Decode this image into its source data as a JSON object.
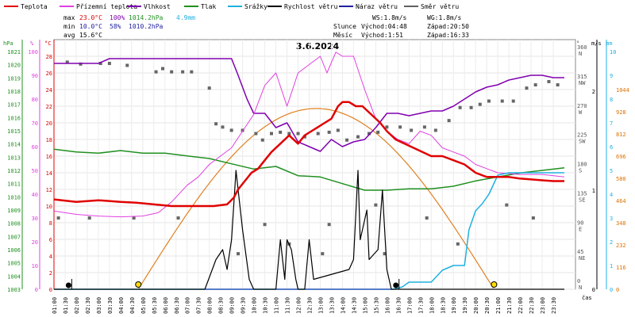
{
  "chart_data": {
    "type": "line",
    "title": "3.6.2024",
    "x_unit_label": "čas",
    "x_ticks": [
      "01:00",
      "01:30",
      "02:00",
      "02:30",
      "03:00",
      "03:30",
      "04:00",
      "04:30",
      "05:00",
      "05:30",
      "06:00",
      "06:30",
      "07:00",
      "07:30",
      "08:00",
      "08:30",
      "09:00",
      "09:30",
      "10:00",
      "10:30",
      "11:00",
      "11:30",
      "12:00",
      "12:30",
      "13:00",
      "13:30",
      "14:00",
      "14:30",
      "15:00",
      "15:30",
      "16:00",
      "16:30",
      "17:00",
      "17:30",
      "18:00",
      "18:30",
      "19:00",
      "19:30",
      "20:00",
      "20:30",
      "21:00",
      "21:30",
      "22:00",
      "22:30",
      "23:00",
      "23:30"
    ],
    "legend": [
      {
        "label": "Teplota",
        "color": "#e00000"
      },
      {
        "label": "Přízemní teplota",
        "color": "#e040e0"
      },
      {
        "label": "Vlhkost",
        "color": "#8000b0"
      },
      {
        "label": "Tlak",
        "color": "#209020"
      },
      {
        "label": "Srážky",
        "color": "#20b0e0"
      },
      {
        "label": "Rychlost větru",
        "color": "#000000"
      },
      {
        "label": "Náraz větru",
        "color": "#2020a0"
      },
      {
        "label": "Směr větru",
        "color": "#606060"
      }
    ],
    "stats": {
      "max_label": "max",
      "max_temp": "23.0°C",
      "max_hum": "100%",
      "max_press": "1014.2hPa",
      "max_rain": "4.9mm",
      "min_label": "min",
      "min_temp": "10.0°C",
      "min_hum": "58%",
      "min_press": "1010.2hPa",
      "avg_label": "avg",
      "avg_temp": "15.6°C"
    },
    "info": {
      "ws": "WS:1.8m/s",
      "wg": "WG:1.8m/s",
      "sun_label": "Slunce",
      "sunrise": "Východ:04:48",
      "sunset": "Západ:20:50",
      "moon_label": "Měsíc",
      "moonrise": "Východ:1:51",
      "moonset": "Západ:16:33"
    },
    "axes": {
      "pressure": {
        "unit": "hPa",
        "ticks": [
          "1003",
          "1004",
          "1005",
          "1006",
          "1007",
          "1008",
          "1009",
          "1010",
          "1011",
          "1012",
          "1013",
          "1014",
          "1015",
          "1016",
          "1017",
          "1018",
          "1019",
          "1020",
          "1021"
        ]
      },
      "humidity": {
        "unit": "%",
        "ticks": [
          "0",
          "10",
          "20",
          "30",
          "40",
          "50",
          "60",
          "70",
          "80",
          "90",
          "100"
        ]
      },
      "temperature": {
        "unit": "°C",
        "ticks": [
          "0",
          "2",
          "4",
          "6",
          "8",
          "10",
          "12",
          "14",
          "16",
          "18",
          "20",
          "22",
          "24",
          "26",
          "28"
        ]
      },
      "direction": {
        "unit": "°",
        "ticks": [
          {
            "deg": "0",
            "dir": "N"
          },
          {
            "deg": "45",
            "dir": "NE"
          },
          {
            "deg": "90",
            "dir": "E"
          },
          {
            "deg": "135",
            "dir": "SE"
          },
          {
            "deg": "180",
            "dir": "S"
          },
          {
            "deg": "225",
            "dir": "SW"
          },
          {
            "deg": "270",
            "dir": "W"
          },
          {
            "deg": "315",
            "dir": "NW"
          },
          {
            "deg": "360",
            "dir": "N"
          }
        ]
      },
      "wind": {
        "unit": "m/s",
        "ticks": [
          "0",
          "1",
          "2"
        ]
      },
      "rain": {
        "unit": "mm",
        "ticks": [
          "0",
          "1",
          "2",
          "3",
          "4",
          "5",
          "6",
          "7",
          "8",
          "9",
          "10"
        ]
      },
      "solar": {
        "ticks": [
          "0",
          "116",
          "232",
          "348",
          "464",
          "580",
          "696",
          "812",
          "928",
          "1044"
        ]
      }
    },
    "series": {
      "teplota": {
        "t": [
          1,
          2,
          3,
          4,
          4.7,
          5.5,
          6.3,
          7,
          7.5,
          8.2,
          8.8,
          9.1,
          9.3,
          9.6,
          9.9,
          10.2,
          10.5,
          10.8,
          11.2,
          11.6,
          12,
          12.3,
          12.6,
          12.9,
          13.2,
          13.5,
          13.8,
          14,
          14.3,
          14.6,
          14.9,
          15.3,
          15.7,
          16,
          16.4,
          16.8,
          17.2,
          17.6,
          18,
          18.5,
          19,
          19.5,
          20,
          20.5,
          21,
          21.5,
          22,
          22.5,
          23,
          23.5,
          24
        ],
        "v": [
          10.8,
          10.5,
          10.7,
          10.5,
          10.4,
          10.2,
          10.0,
          10.0,
          10.0,
          10.0,
          10.2,
          11.0,
          12.0,
          13.0,
          14.0,
          14.5,
          15.5,
          16.5,
          17.5,
          18.5,
          17.5,
          18.5,
          19.0,
          19.5,
          20.0,
          20.5,
          22.0,
          22.5,
          22.5,
          22.0,
          22.0,
          21.0,
          20.0,
          19.0,
          18.0,
          17.5,
          17.0,
          16.5,
          16.0,
          16.0,
          15.5,
          15.0,
          14.0,
          13.5,
          13.5,
          13.5,
          13.3,
          13.2,
          13.1,
          13.0,
          13.0
        ]
      },
      "prizemni": {
        "t": [
          1,
          2,
          3,
          4,
          5,
          5.7,
          6.3,
          7,
          7.5,
          8,
          8.5,
          9,
          9.5,
          10,
          10.5,
          11,
          11.5,
          12,
          12.5,
          13,
          13.3,
          13.7,
          14,
          14.5,
          15,
          15.5,
          16,
          16.5,
          17,
          17.5,
          18,
          18.5,
          19,
          19.5,
          20,
          20.5,
          21,
          22,
          23,
          24
        ],
        "v": [
          9.4,
          9.0,
          8.8,
          8.7,
          8.8,
          9.2,
          10.5,
          12.5,
          13.5,
          15.0,
          16.0,
          17.0,
          19.0,
          21.0,
          24.5,
          26.0,
          22.0,
          26.0,
          27.0,
          28.0,
          26.0,
          28.5,
          28.0,
          28.0,
          24.0,
          20.5,
          19.0,
          18.0,
          17.5,
          19.0,
          18.5,
          17.0,
          16.5,
          16.0,
          15.0,
          14.5,
          14.0,
          13.8,
          13.8,
          13.5
        ]
      },
      "vlhkost": {
        "t": [
          1,
          2,
          3,
          3.5,
          4,
          5,
          6,
          7,
          8,
          8.5,
          9,
          9.3,
          9.7,
          10,
          10.5,
          11,
          11.5,
          12,
          12.5,
          13,
          13.5,
          14,
          14.5,
          15,
          15.5,
          16,
          16.5,
          17,
          17.5,
          18,
          18.5,
          19,
          19.5,
          20,
          20.5,
          21,
          21.5,
          22,
          22.5,
          23,
          23.5,
          24
        ],
        "v": [
          95,
          95,
          95,
          97,
          97,
          97,
          97,
          97,
          97,
          97,
          97,
          90,
          80,
          74,
          74,
          68,
          70,
          62,
          60,
          58,
          63,
          60,
          62,
          63,
          68,
          74,
          74,
          73,
          74,
          75,
          75,
          77,
          80,
          83,
          85,
          86,
          88,
          89,
          90,
          90,
          89,
          89
        ]
      },
      "tlak": {
        "t": [
          1,
          2,
          3,
          4,
          5,
          6,
          7,
          8,
          9,
          10,
          11,
          12,
          13,
          14,
          15,
          16,
          17,
          18,
          19,
          20,
          21,
          22,
          23,
          24
        ],
        "v": [
          1013.6,
          1013.4,
          1013.3,
          1013.5,
          1013.3,
          1013.3,
          1013.1,
          1012.9,
          1012.5,
          1012.1,
          1012.3,
          1011.6,
          1011.5,
          1011.0,
          1010.5,
          1010.5,
          1010.6,
          1010.6,
          1010.8,
          1011.2,
          1011.5,
          1011.8,
          1012.0,
          1012.2
        ]
      },
      "srazky": {
        "t": [
          1,
          16.3,
          16.7,
          17,
          17.5,
          18,
          18.5,
          19,
          19.3,
          19.5,
          19.7,
          20,
          20.3,
          20.6,
          21,
          21.5,
          22,
          23,
          24
        ],
        "v": [
          0,
          0,
          0.1,
          0.3,
          0.3,
          0.3,
          0.8,
          1.0,
          1.0,
          1.0,
          2.5,
          3.3,
          3.6,
          4.0,
          4.8,
          4.9,
          4.9,
          4.9,
          4.9
        ]
      },
      "rychlost": {
        "t": [
          1,
          7.8,
          8.3,
          8.6,
          8.8,
          9,
          9.2,
          9.5,
          9.8,
          10,
          10.3,
          10.5,
          10.7,
          11,
          11.2,
          11.4,
          11.5,
          11.7,
          11.9,
          12,
          12.1,
          12.2,
          12.3,
          12.5,
          12.7,
          14.3,
          14.5,
          14.7,
          14.8,
          15.1,
          15.2,
          15.6,
          15.8,
          16,
          16.2,
          24
        ],
        "v": [
          0,
          0,
          0.3,
          0.4,
          0.2,
          0.5,
          1.2,
          0.6,
          0.1,
          0,
          0,
          0,
          0,
          0,
          0.5,
          0.1,
          0.5,
          0.4,
          0.1,
          0,
          0,
          0,
          0,
          0.5,
          0.1,
          0.2,
          0.3,
          1.2,
          0.5,
          0.8,
          0.3,
          0.4,
          1.0,
          0.2,
          0,
          0
        ]
      },
      "naraz": {
        "t": [
          1,
          24
        ],
        "v": [
          0,
          0
        ]
      },
      "slunce": {
        "sunrise": 4.8,
        "sunset": 20.83,
        "peak": 945
      }
    },
    "smer_points": [
      [
        1.6,
        340
      ],
      [
        2.2,
        337
      ],
      [
        3.1,
        338
      ],
      [
        3.5,
        338
      ],
      [
        4.3,
        335
      ],
      [
        5.6,
        325
      ],
      [
        5.9,
        330
      ],
      [
        6.3,
        325
      ],
      [
        6.8,
        325
      ],
      [
        7.2,
        325
      ],
      [
        8,
        300
      ],
      [
        8.3,
        245
      ],
      [
        8.6,
        240
      ],
      [
        9,
        235
      ],
      [
        9.5,
        235
      ],
      [
        10.1,
        230
      ],
      [
        10.4,
        220
      ],
      [
        10.8,
        230
      ],
      [
        11.2,
        232
      ],
      [
        11.6,
        230
      ],
      [
        12,
        230
      ],
      [
        12.3,
        225
      ],
      [
        12.9,
        230
      ],
      [
        13.4,
        232
      ],
      [
        13.8,
        235
      ],
      [
        14.2,
        220
      ],
      [
        14.7,
        225
      ],
      [
        15.2,
        230
      ],
      [
        15.6,
        232
      ],
      [
        16,
        240
      ],
      [
        16.6,
        240
      ],
      [
        17.1,
        235
      ],
      [
        17.7,
        240
      ],
      [
        18.2,
        235
      ],
      [
        18.8,
        250
      ],
      [
        19.3,
        270
      ],
      [
        19.8,
        270
      ],
      [
        20.2,
        275
      ],
      [
        20.6,
        280
      ],
      [
        21.2,
        280
      ],
      [
        21.7,
        280
      ],
      [
        22.3,
        300
      ],
      [
        22.7,
        305
      ],
      [
        23.3,
        310
      ],
      [
        23.7,
        305
      ],
      [
        1.2,
        100
      ],
      [
        2.6,
        100
      ],
      [
        4.6,
        100
      ],
      [
        6.6,
        100
      ],
      [
        10.5,
        90
      ],
      [
        13.4,
        90
      ],
      [
        15.5,
        120
      ],
      [
        17.8,
        100
      ],
      [
        19.2,
        60
      ],
      [
        21.4,
        120
      ],
      [
        22.6,
        100
      ],
      [
        9.3,
        45
      ],
      [
        13.1,
        45
      ],
      [
        15.9,
        45
      ],
      [
        11.6,
        60
      ]
    ],
    "moon_markers": [
      1.8,
      16.55
    ],
    "sun_markers": [
      4.8,
      20.83
    ]
  }
}
